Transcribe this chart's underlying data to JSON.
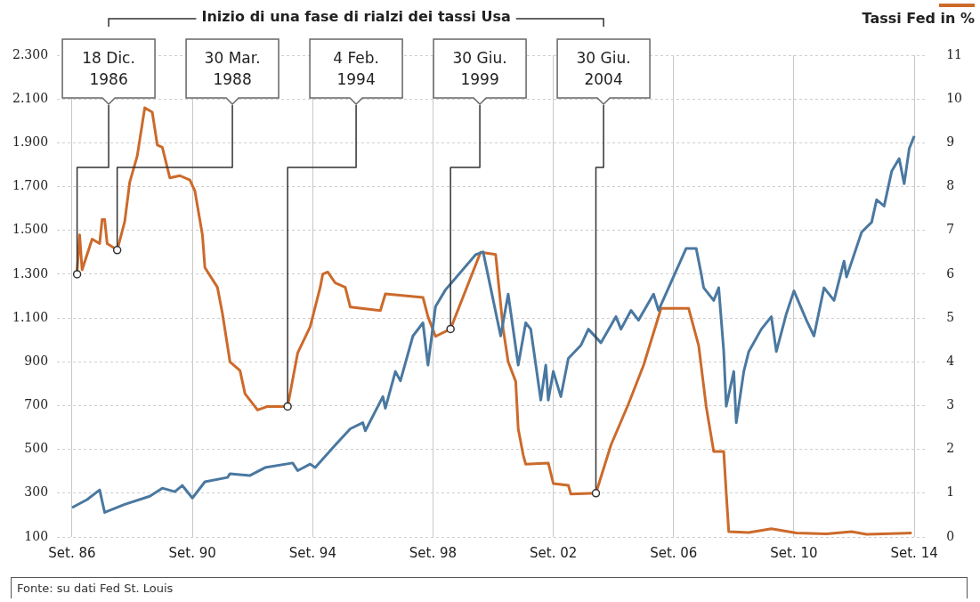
{
  "chart_data": {
    "type": "line",
    "title": "Inizio di una fase di rialzi dei tassi Usa",
    "y2label": "Tassi Fed in %",
    "xlim": [
      "1986-03",
      "2015-02"
    ],
    "xticks": [
      {
        "value": "1986-09",
        "label": "Set. 86"
      },
      {
        "value": "1990-09",
        "label": "Set. 90"
      },
      {
        "value": "1994-09",
        "label": "Set. 94"
      },
      {
        "value": "1998-09",
        "label": "Set. 98"
      },
      {
        "value": "2002-09",
        "label": "Set. 02"
      },
      {
        "value": "2006-09",
        "label": "Set. 06"
      },
      {
        "value": "2010-09",
        "label": "Set. 10"
      },
      {
        "value": "2014-09",
        "label": "Set. 14"
      }
    ],
    "ylim": [
      100,
      2300
    ],
    "yticks": [
      100,
      300,
      500,
      700,
      900,
      {
        "value": 1100,
        "label": "1.100"
      },
      {
        "value": 1300,
        "label": "1.300"
      },
      {
        "value": 1500,
        "label": "1.500"
      },
      {
        "value": 1700,
        "label": "1.700"
      },
      {
        "value": 1900,
        "label": "1.900"
      },
      {
        "value": 2100,
        "label": "2.100"
      },
      {
        "value": 2300,
        "label": "2.300"
      }
    ],
    "y2lim": [
      0,
      11
    ],
    "y2ticks": [
      0,
      1,
      2,
      3,
      4,
      5,
      6,
      7,
      8,
      9,
      10,
      11
    ],
    "grid": true,
    "marker": "none",
    "series": [
      {
        "color": "#4a78a0",
        "x": [
          "1986-09",
          "1987-03",
          "1987-08",
          "1987-10",
          "1988-06",
          "1989-04",
          "1989-09",
          "1990-02",
          "1990-05",
          "1990-09",
          "1991-02",
          "1991-11",
          "1991-12",
          "1992-08",
          "1993-02",
          "1994-01",
          "1994-03",
          "1994-08",
          "1994-10",
          "1995-06",
          "1995-12",
          "1996-05",
          "1996-06",
          "1997-01",
          "1997-02",
          "1997-06",
          "1997-08",
          "1998-01",
          "1998-05",
          "1998-07",
          "1998-10",
          "1999-02",
          "2000-02",
          "2000-05",
          "2000-08",
          "2000-12",
          "2001-03",
          "2001-07",
          "2001-10",
          "2001-12",
          "2002-04",
          "2002-06",
          "2002-07",
          "2002-09",
          "2002-12",
          "2003-03",
          "2003-08",
          "2003-11",
          "2004-04",
          "2004-10",
          "2004-12",
          "2005-04",
          "2005-07",
          "2006-01",
          "2006-03",
          "2006-07",
          "2006-10",
          "2007-02",
          "2007-06",
          "2007-08",
          "2007-09",
          "2008-01",
          "2008-03",
          "2008-05",
          "2008-06",
          "2008-09",
          "2008-10",
          "2009-01",
          "2009-03",
          "2009-08",
          "2009-12",
          "2010-02",
          "2010-06",
          "2010-09",
          "2011-02",
          "2011-05",
          "2011-09",
          "2012-01",
          "2012-05",
          "2012-06",
          "2012-12",
          "2013-04",
          "2013-06",
          "2013-09",
          "2013-12",
          "2014-03",
          "2014-05",
          "2014-07",
          "2014-09"
        ],
        "values": [
          234,
          271,
          315,
          212,
          249,
          286,
          323,
          307,
          335,
          278,
          352,
          372,
          389,
          381,
          417,
          438,
          403,
          433,
          417,
          520,
          594,
          622,
          585,
          741,
          688,
          856,
          813,
          1018,
          1078,
          885,
          1152,
          1229,
          1389,
          1402,
          1238,
          1018,
          1209,
          885,
          1078,
          1049,
          725,
          885,
          725,
          856,
          741,
          915,
          975,
          1049,
          987,
          1106,
          1049,
          1135,
          1090,
          1209,
          1135,
          1238,
          1315,
          1418,
          1418,
          1303,
          1238,
          1180,
          1238,
          947,
          697,
          856,
          622,
          856,
          947,
          1049,
          1106,
          947,
          1120,
          1224,
          1090,
          1018,
          1238,
          1180,
          1360,
          1287,
          1492,
          1537,
          1640,
          1611,
          1770,
          1828,
          1713,
          1873,
          1931
        ]
      },
      {
        "color": "#cc6a2b",
        "axis": "y2",
        "x": [
          "1986-11",
          "1986-12",
          "1987-01",
          "1987-05",
          "1987-08",
          "1987-09",
          "1987-10",
          "1987-11",
          "1988-03",
          "1988-06",
          "1988-08",
          "1988-11",
          "1989-02",
          "1989-05",
          "1989-07",
          "1989-09",
          "1989-12",
          "1990-04",
          "1990-08",
          "1990-10",
          "1991-01",
          "1991-02",
          "1991-07",
          "1991-09",
          "1991-12",
          "1992-04",
          "1992-06",
          "1992-11",
          "1993-03",
          "1993-11",
          "1994-03",
          "1994-08",
          "1994-12",
          "1995-01",
          "1995-03",
          "1995-06",
          "1995-10",
          "1995-12",
          "1996-12",
          "1997-02",
          "1998-05",
          "1998-07",
          "1998-10",
          "1999-04",
          "2000-04",
          "2000-10",
          "2001-01",
          "2001-03",
          "2001-06",
          "2001-07",
          "2001-09",
          "2001-10",
          "2002-07",
          "2002-09",
          "2003-03",
          "2003-04",
          "2004-02",
          "2004-08",
          "2005-03",
          "2005-09",
          "2006-04",
          "2007-03",
          "2007-07",
          "2007-10",
          "2008-01",
          "2008-05",
          "2008-06",
          "2008-07",
          "2009-03",
          "2009-12",
          "2010-10",
          "2011-10",
          "2012-08",
          "2013-02",
          "2014-08"
        ],
        "values": [
          6.06,
          6.9,
          6.1,
          6.8,
          6.7,
          7.25,
          7.25,
          6.7,
          6.55,
          7.2,
          8.1,
          8.7,
          9.8,
          9.7,
          8.95,
          8.9,
          8.2,
          8.25,
          8.15,
          7.9,
          6.9,
          6.15,
          5.7,
          5.1,
          4.0,
          3.8,
          3.27,
          2.9,
          2.98,
          2.98,
          4.2,
          4.8,
          5.7,
          6.0,
          6.05,
          5.8,
          5.7,
          5.25,
          5.17,
          5.55,
          5.47,
          5.03,
          4.58,
          4.75,
          6.5,
          6.45,
          4.75,
          4.0,
          3.55,
          2.47,
          1.87,
          1.66,
          1.69,
          1.22,
          1.18,
          0.98,
          1.0,
          2.1,
          3.04,
          3.92,
          5.22,
          5.22,
          4.37,
          2.98,
          1.95,
          1.95,
          1.0,
          0.12,
          0.1,
          0.19,
          0.09,
          0.07,
          0.12,
          0.06,
          0.09
        ]
      }
    ],
    "annotations": [
      {
        "text": "18 Dic. 1986",
        "x": "1986-11",
        "y": 1300
      },
      {
        "text": "30 Mar. 1988",
        "x": "1988-03",
        "y": 1410
      },
      {
        "text": "4 Feb. 1994",
        "x": "1993-11",
        "y": 696
      },
      {
        "text": "30 Giu. 1999",
        "x": "1999-04",
        "y": 1050
      },
      {
        "text": "30 Giu. 2004",
        "x": "2004-02",
        "y": 300
      },
      "Fonte: su dati Fed St. Louis"
    ]
  }
}
